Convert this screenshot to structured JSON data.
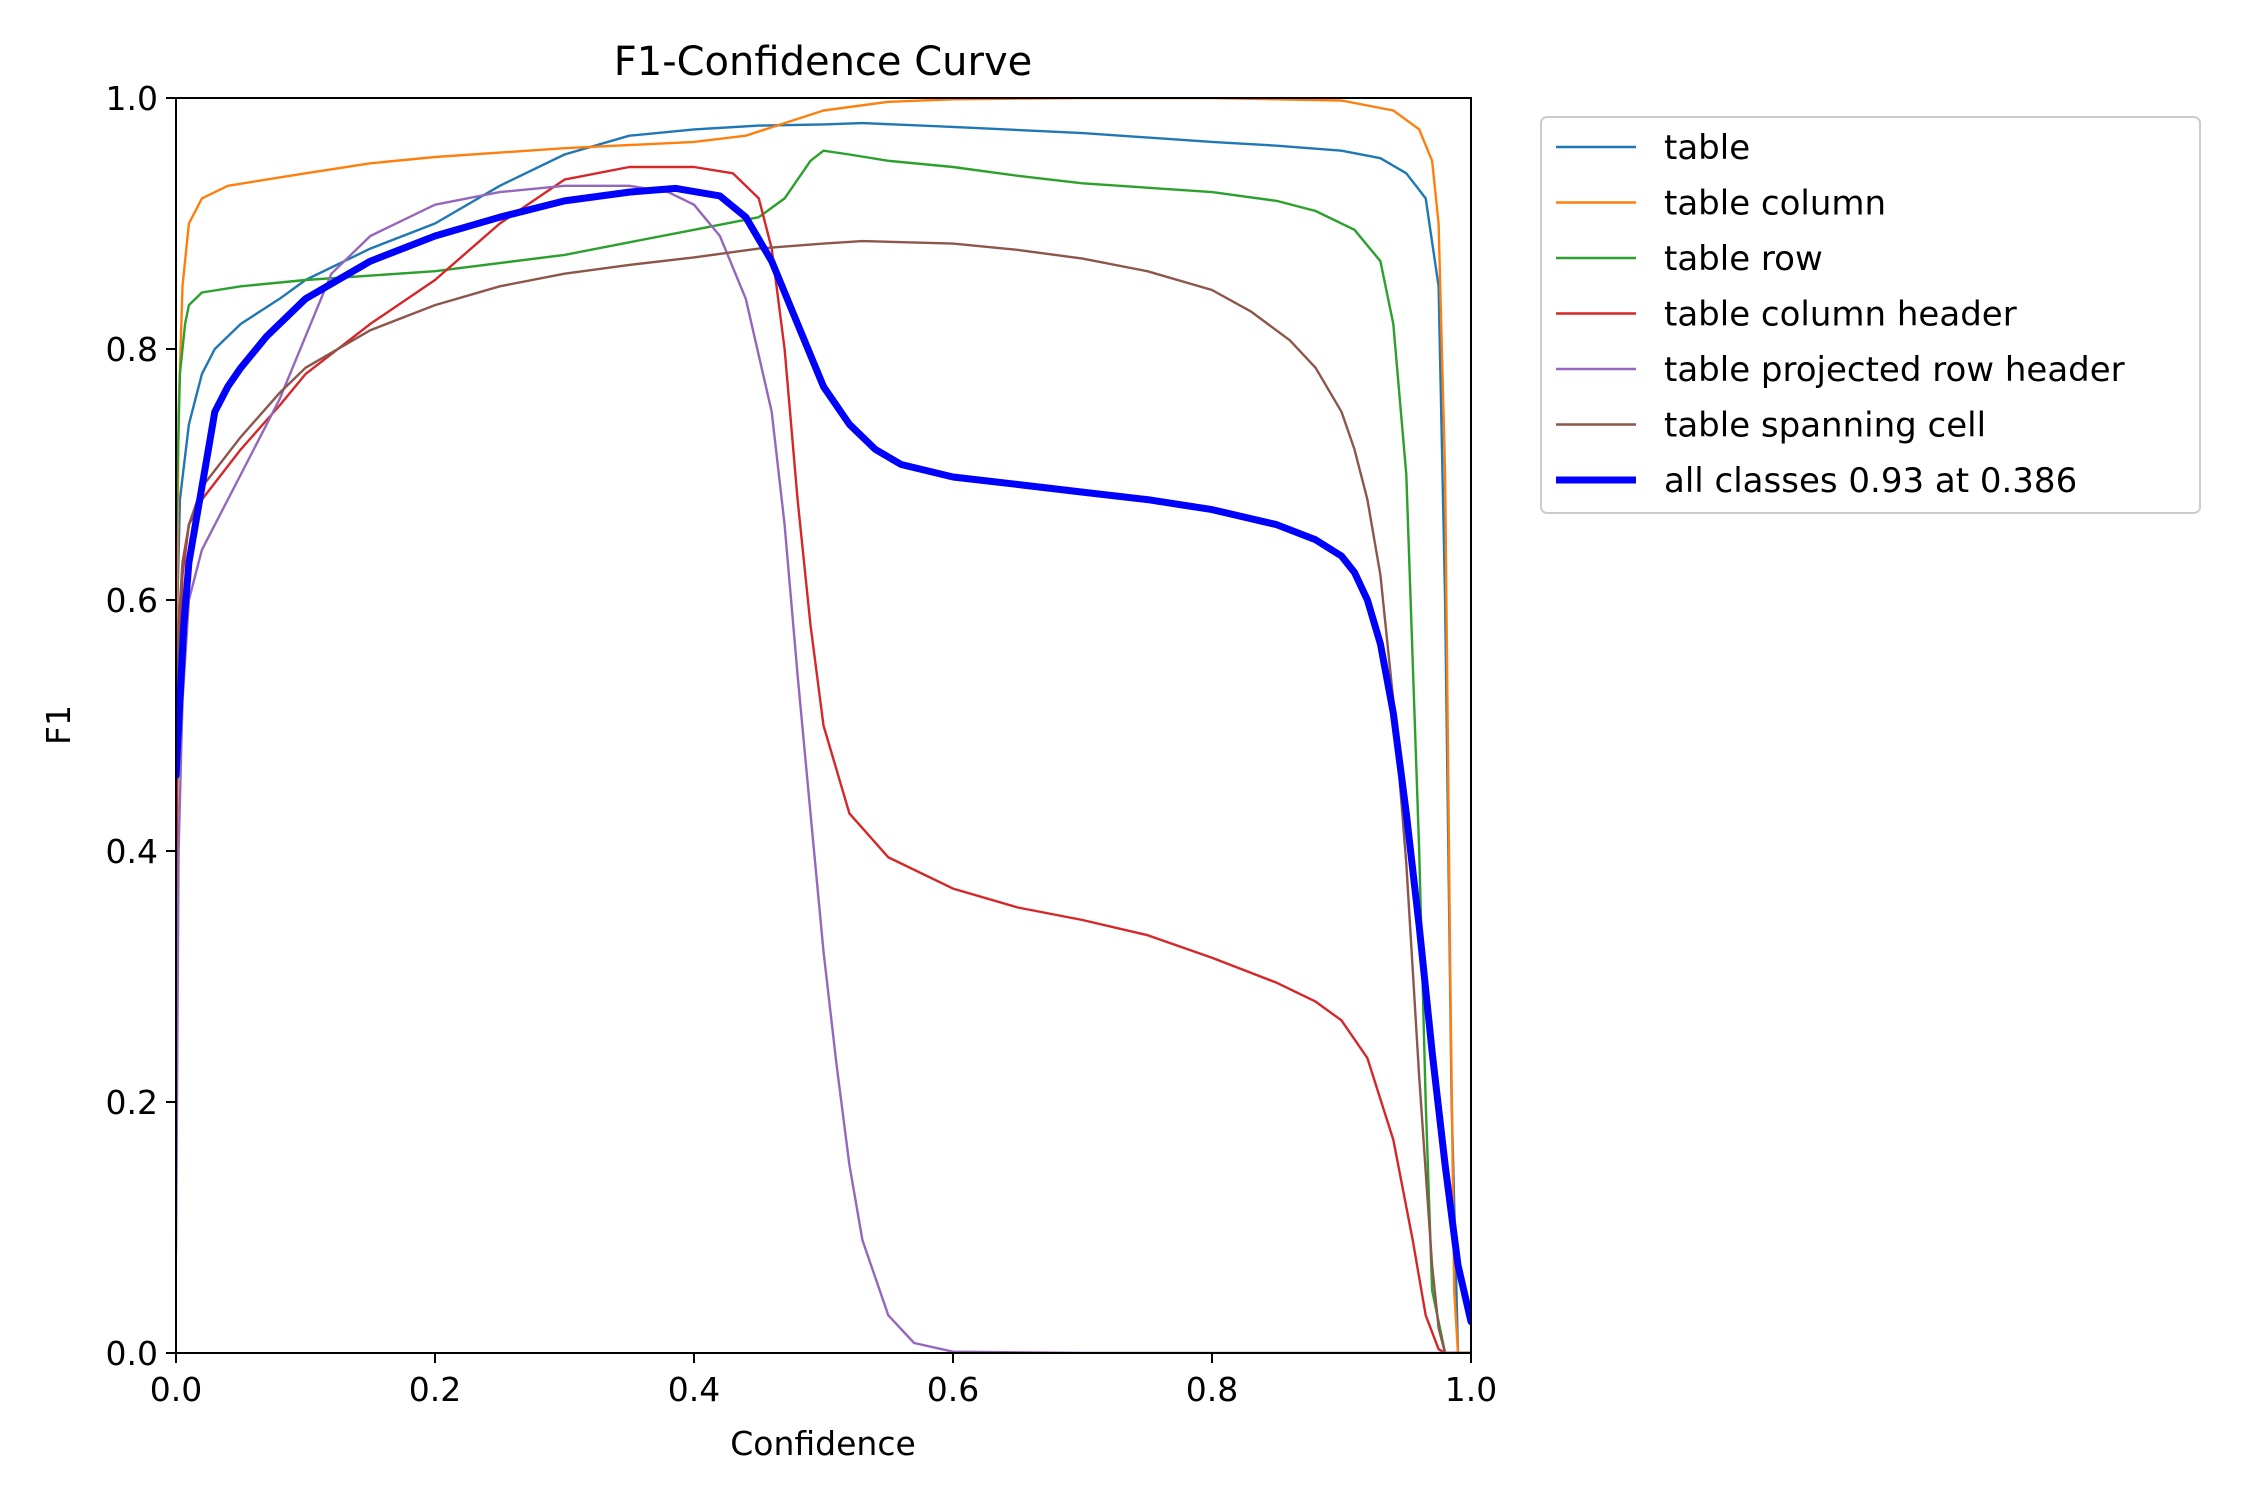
{
  "chart_data": {
    "type": "line",
    "title": "F1-Confidence Curve",
    "xlabel": "Confidence",
    "ylabel": "F1",
    "xlim": [
      0,
      1
    ],
    "ylim": [
      0,
      1
    ],
    "xticks": [
      "0.0",
      "0.2",
      "0.4",
      "0.6",
      "0.8",
      "1.0"
    ],
    "yticks": [
      "0.0",
      "0.2",
      "0.4",
      "0.6",
      "0.8",
      "1.0"
    ],
    "grid": false,
    "legend_position": "outside upper right",
    "series": [
      {
        "name": "table",
        "color": "#1f77b4",
        "x": [
          0.0,
          0.003,
          0.01,
          0.02,
          0.03,
          0.05,
          0.08,
          0.1,
          0.15,
          0.2,
          0.25,
          0.3,
          0.35,
          0.4,
          0.45,
          0.5,
          0.53,
          0.6,
          0.7,
          0.8,
          0.85,
          0.9,
          0.93,
          0.95,
          0.965,
          0.975,
          0.98,
          0.985,
          0.99,
          1.0
        ],
        "y": [
          0.55,
          0.68,
          0.74,
          0.78,
          0.8,
          0.82,
          0.84,
          0.855,
          0.88,
          0.9,
          0.93,
          0.955,
          0.97,
          0.975,
          0.978,
          0.979,
          0.98,
          0.977,
          0.972,
          0.965,
          0.962,
          0.958,
          0.952,
          0.94,
          0.92,
          0.85,
          0.6,
          0.2,
          0.0,
          0.0
        ]
      },
      {
        "name": "table column",
        "color": "#ff7f0e",
        "x": [
          0.0,
          0.002,
          0.005,
          0.01,
          0.02,
          0.04,
          0.1,
          0.15,
          0.2,
          0.3,
          0.4,
          0.44,
          0.47,
          0.5,
          0.55,
          0.6,
          0.7,
          0.8,
          0.9,
          0.94,
          0.96,
          0.97,
          0.975,
          0.98,
          0.984,
          0.987,
          0.99,
          1.0
        ],
        "y": [
          0.5,
          0.75,
          0.85,
          0.9,
          0.92,
          0.93,
          0.94,
          0.948,
          0.953,
          0.96,
          0.965,
          0.97,
          0.98,
          0.99,
          0.997,
          0.999,
          1.0,
          1.0,
          0.998,
          0.99,
          0.975,
          0.95,
          0.9,
          0.7,
          0.3,
          0.05,
          0.0,
          0.0
        ]
      },
      {
        "name": "table row",
        "color": "#2ca02c",
        "x": [
          0.0,
          0.003,
          0.007,
          0.01,
          0.02,
          0.05,
          0.1,
          0.2,
          0.3,
          0.35,
          0.4,
          0.45,
          0.47,
          0.49,
          0.5,
          0.52,
          0.55,
          0.6,
          0.65,
          0.7,
          0.8,
          0.85,
          0.88,
          0.91,
          0.93,
          0.94,
          0.95,
          0.96,
          0.965,
          0.97,
          0.98,
          1.0
        ],
        "y": [
          0.65,
          0.78,
          0.82,
          0.835,
          0.845,
          0.85,
          0.855,
          0.862,
          0.875,
          0.885,
          0.895,
          0.905,
          0.92,
          0.95,
          0.958,
          0.955,
          0.95,
          0.945,
          0.938,
          0.932,
          0.925,
          0.918,
          0.91,
          0.895,
          0.87,
          0.82,
          0.7,
          0.4,
          0.2,
          0.05,
          0.0,
          0.0
        ]
      },
      {
        "name": "table column header",
        "color": "#d62728",
        "x": [
          0.0,
          0.002,
          0.005,
          0.01,
          0.02,
          0.05,
          0.08,
          0.1,
          0.15,
          0.2,
          0.25,
          0.3,
          0.35,
          0.4,
          0.43,
          0.45,
          0.46,
          0.47,
          0.48,
          0.49,
          0.5,
          0.52,
          0.55,
          0.6,
          0.65,
          0.7,
          0.75,
          0.8,
          0.85,
          0.88,
          0.9,
          0.92,
          0.94,
          0.955,
          0.965,
          0.975,
          0.98,
          1.0
        ],
        "y": [
          0.35,
          0.55,
          0.62,
          0.66,
          0.68,
          0.72,
          0.755,
          0.78,
          0.82,
          0.855,
          0.9,
          0.935,
          0.945,
          0.945,
          0.94,
          0.92,
          0.88,
          0.8,
          0.68,
          0.58,
          0.5,
          0.43,
          0.395,
          0.37,
          0.355,
          0.345,
          0.333,
          0.315,
          0.295,
          0.28,
          0.265,
          0.235,
          0.17,
          0.09,
          0.03,
          0.003,
          0.0,
          0.0
        ]
      },
      {
        "name": "table projected row header",
        "color": "#9467bd",
        "x": [
          0.0,
          0.002,
          0.005,
          0.01,
          0.02,
          0.05,
          0.08,
          0.1,
          0.12,
          0.15,
          0.2,
          0.25,
          0.3,
          0.35,
          0.38,
          0.4,
          0.42,
          0.44,
          0.46,
          0.47,
          0.48,
          0.49,
          0.5,
          0.51,
          0.52,
          0.53,
          0.55,
          0.57,
          0.6,
          0.7,
          0.8,
          1.0
        ],
        "y": [
          0.08,
          0.4,
          0.52,
          0.6,
          0.64,
          0.7,
          0.76,
          0.81,
          0.86,
          0.89,
          0.915,
          0.925,
          0.93,
          0.93,
          0.925,
          0.915,
          0.89,
          0.84,
          0.75,
          0.66,
          0.54,
          0.43,
          0.32,
          0.23,
          0.15,
          0.09,
          0.03,
          0.008,
          0.001,
          0.0,
          0.0,
          0.0
        ]
      },
      {
        "name": "table spanning cell",
        "color": "#8c564b",
        "x": [
          0.0,
          0.002,
          0.005,
          0.01,
          0.02,
          0.05,
          0.08,
          0.1,
          0.15,
          0.2,
          0.25,
          0.3,
          0.35,
          0.4,
          0.45,
          0.5,
          0.53,
          0.6,
          0.65,
          0.7,
          0.75,
          0.8,
          0.83,
          0.86,
          0.88,
          0.9,
          0.91,
          0.92,
          0.93,
          0.94,
          0.95,
          0.96,
          0.97,
          0.975,
          0.98,
          1.0
        ],
        "y": [
          0.45,
          0.58,
          0.63,
          0.66,
          0.69,
          0.73,
          0.765,
          0.785,
          0.815,
          0.835,
          0.85,
          0.86,
          0.867,
          0.873,
          0.88,
          0.884,
          0.886,
          0.884,
          0.879,
          0.872,
          0.862,
          0.847,
          0.83,
          0.807,
          0.785,
          0.75,
          0.72,
          0.68,
          0.62,
          0.52,
          0.39,
          0.22,
          0.07,
          0.02,
          0.0,
          0.0
        ]
      },
      {
        "name": "all classes 0.93 at 0.386",
        "color": "#0000ff",
        "width": 7,
        "x": [
          0.0,
          0.003,
          0.006,
          0.01,
          0.015,
          0.02,
          0.025,
          0.03,
          0.04,
          0.05,
          0.07,
          0.1,
          0.15,
          0.2,
          0.25,
          0.3,
          0.35,
          0.386,
          0.42,
          0.44,
          0.46,
          0.48,
          0.5,
          0.52,
          0.54,
          0.56,
          0.6,
          0.65,
          0.7,
          0.75,
          0.8,
          0.85,
          0.88,
          0.9,
          0.91,
          0.92,
          0.93,
          0.94,
          0.95,
          0.96,
          0.97,
          0.98,
          0.99,
          1.0
        ],
        "y": [
          0.46,
          0.52,
          0.58,
          0.63,
          0.66,
          0.69,
          0.72,
          0.75,
          0.77,
          0.785,
          0.81,
          0.84,
          0.87,
          0.89,
          0.905,
          0.918,
          0.925,
          0.928,
          0.922,
          0.905,
          0.87,
          0.82,
          0.77,
          0.74,
          0.72,
          0.708,
          0.698,
          0.692,
          0.686,
          0.68,
          0.672,
          0.66,
          0.648,
          0.635,
          0.622,
          0.6,
          0.565,
          0.51,
          0.43,
          0.34,
          0.24,
          0.15,
          0.07,
          0.025
        ]
      }
    ]
  }
}
